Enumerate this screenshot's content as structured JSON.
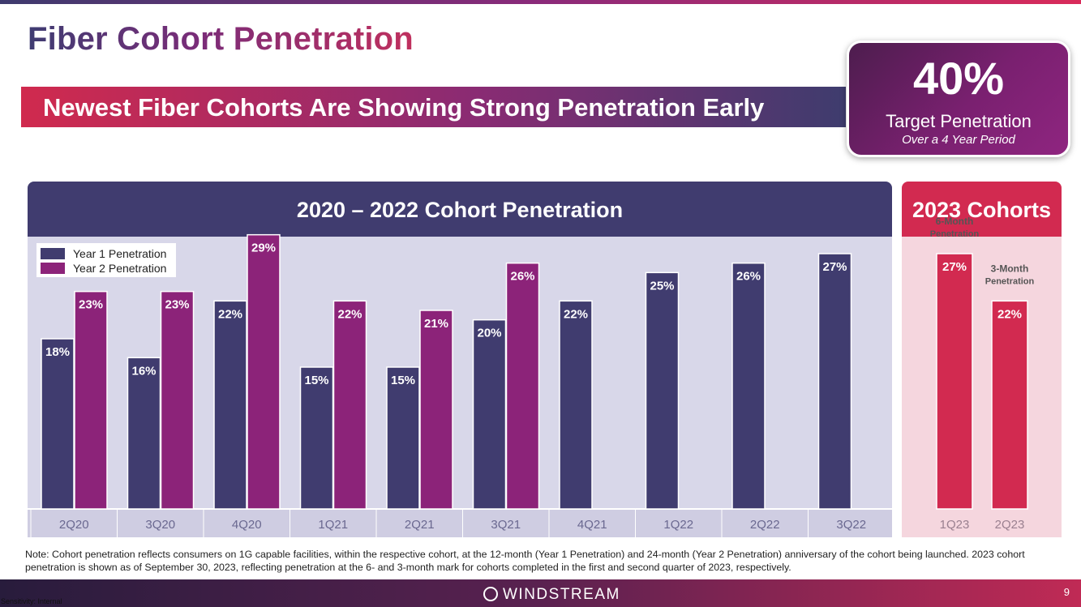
{
  "title": "Fiber Cohort Penetration",
  "subtitle": "Newest Fiber Cohorts Are Showing Strong Penetration Early",
  "target": {
    "value": "40%",
    "label": "Target Penetration",
    "sublabel": "Over a 4 Year Period"
  },
  "colors": {
    "year1": "#403c6f",
    "year2": "#8c2379",
    "cohort2023": "#d22a50"
  },
  "chart_data": [
    {
      "type": "bar",
      "title": "2020 – 2022 Cohort Penetration",
      "categories": [
        "2Q20",
        "3Q20",
        "4Q20",
        "1Q21",
        "2Q21",
        "3Q21",
        "4Q21",
        "1Q22",
        "2Q22",
        "3Q22"
      ],
      "series": [
        {
          "name": "Year 1 Penetration",
          "values": [
            18,
            16,
            22,
            15,
            15,
            20,
            22,
            25,
            26,
            27
          ],
          "labels": [
            "18%",
            "16%",
            "22%",
            "15%",
            "15%",
            "20%",
            "22%",
            "25%",
            "26%",
            "27%"
          ]
        },
        {
          "name": "Year 2 Penetration",
          "values": [
            23,
            23,
            29,
            22,
            21,
            26,
            null,
            null,
            null,
            null
          ],
          "labels": [
            "23%",
            "23%",
            "29%",
            "22%",
            "21%",
            "26%",
            null,
            null,
            null,
            null
          ]
        }
      ],
      "ylim": [
        0,
        30
      ],
      "legend": "top-left"
    },
    {
      "type": "bar",
      "title": "2023 Cohorts",
      "categories": [
        "1Q23",
        "2Q23"
      ],
      "values": [
        27,
        22
      ],
      "labels": [
        "27%",
        "22%"
      ],
      "annotations": [
        "6-Month Penetration",
        "3-Month Penetration"
      ],
      "ylim": [
        0,
        30
      ]
    }
  ],
  "note": "Note: Cohort penetration reflects consumers on 1G capable facilities, within the respective cohort, at the 12-month (Year 1 Penetration) and 24-month (Year 2 Penetration) anniversary of the cohort being launched. 2023 cohort penetration is shown as of September 30, 2023, reflecting penetration at the 6- and 3-month mark for cohorts completed in the first and second quarter of 2023, respectively.",
  "footer": {
    "logo": "WINDSTREAM",
    "page": "9",
    "sensitivity": "Sensitivity: Internal"
  }
}
